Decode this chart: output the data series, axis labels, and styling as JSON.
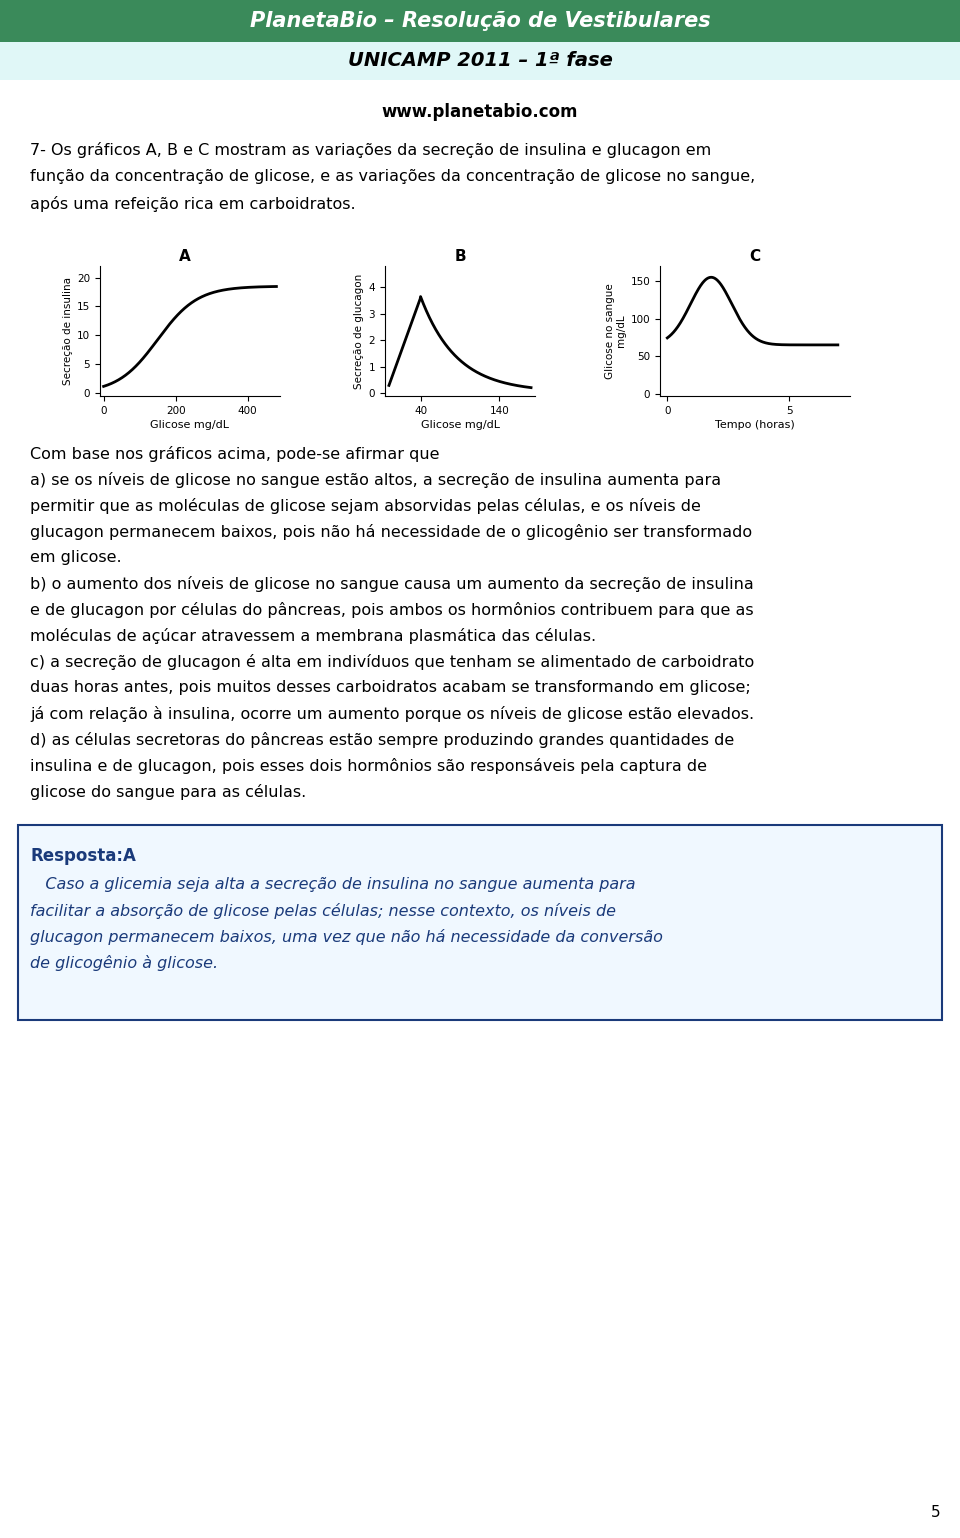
{
  "header_bg_color": "#3a8a5a",
  "header_text": "PlanetaBio – Resolução de Vestibulares",
  "subheader_bg_color": "#e0f7f7",
  "subheader_text": "UNICAMP 2011 – 1ª fase",
  "website_text": "www.planetabio.com",
  "graph_A_title": "A",
  "graph_B_title": "B",
  "graph_C_title": "C",
  "graph_A_ylabel": "Secreção de insulina",
  "graph_A_xlabel": "Glicose mg/dL",
  "graph_A_yticks": [
    0,
    5,
    10,
    15,
    20
  ],
  "graph_A_xticks": [
    0,
    200,
    400
  ],
  "graph_B_ylabel": "Secreção de glucagon",
  "graph_B_xlabel": "Glicose mg/dL",
  "graph_B_yticks": [
    0,
    1,
    2,
    3,
    4
  ],
  "graph_B_xticks": [
    40,
    140
  ],
  "graph_C_ylabel": "Glicose no sangue\nmg/dL",
  "graph_C_xlabel": "Tempo (horas)",
  "graph_C_yticks": [
    0,
    50,
    100,
    150
  ],
  "graph_C_xticks": [
    0,
    5
  ],
  "q_lines": [
    "7- Os gráficos A, B e C mostram as variações da secreção de insulina e glucagon em",
    "função da concentração de glicose, e as variações da concentração de glicose no sangue,",
    "após uma refeição rica em carboidratos."
  ],
  "intro_text": "Com base nos gráficos acima, pode-se afirmar que",
  "option_a_lines": [
    "a) se os níveis de glicose no sangue estão altos, a secreção de insulina aumenta para",
    "permitir que as moléculas de glicose sejam absorvidas pelas células, e os níveis de",
    "glucagon permanecem baixos, pois não há necessidade de o glicogênio ser transformado",
    "em glicose."
  ],
  "option_b_lines": [
    "b) o aumento dos níveis de glicose no sangue causa um aumento da secreção de insulina",
    "e de glucagon por células do pâncreas, pois ambos os hormônios contribuem para que as",
    "moléculas de açúcar atravessem a membrana plasmática das células."
  ],
  "option_c_lines": [
    "c) a secreção de glucagon é alta em indivíduos que tenham se alimentado de carboidrato",
    "duas horas antes, pois muitos desses carboidratos acabam se transformando em glicose;",
    "já com relação à insulina, ocorre um aumento porque os níveis de glicose estão elevados."
  ],
  "option_d_lines": [
    "d) as células secretoras do pâncreas estão sempre produzindo grandes quantidades de",
    "insulina e de glucagon, pois esses dois hormônios são responsáveis pela captura de",
    "glicose do sangue para as células."
  ],
  "resposta_label": "Resposta:A",
  "resposta_lines": [
    "   Caso a glicemia seja alta a secreção de insulina no sangue aumenta para",
    "facilitar a absorção de glicose pelas células; nesse contexto, os níveis de",
    "glucagon permanecem baixos, uma vez que não há necessidade da conversão",
    "de glicogênio à glicose."
  ],
  "page_number": "5",
  "bg_color": "#ffffff",
  "text_color": "#000000",
  "resposta_color": "#1a3a7a",
  "resposta_border": "#1a3a7a",
  "resposta_bg": "#f0f8ff"
}
